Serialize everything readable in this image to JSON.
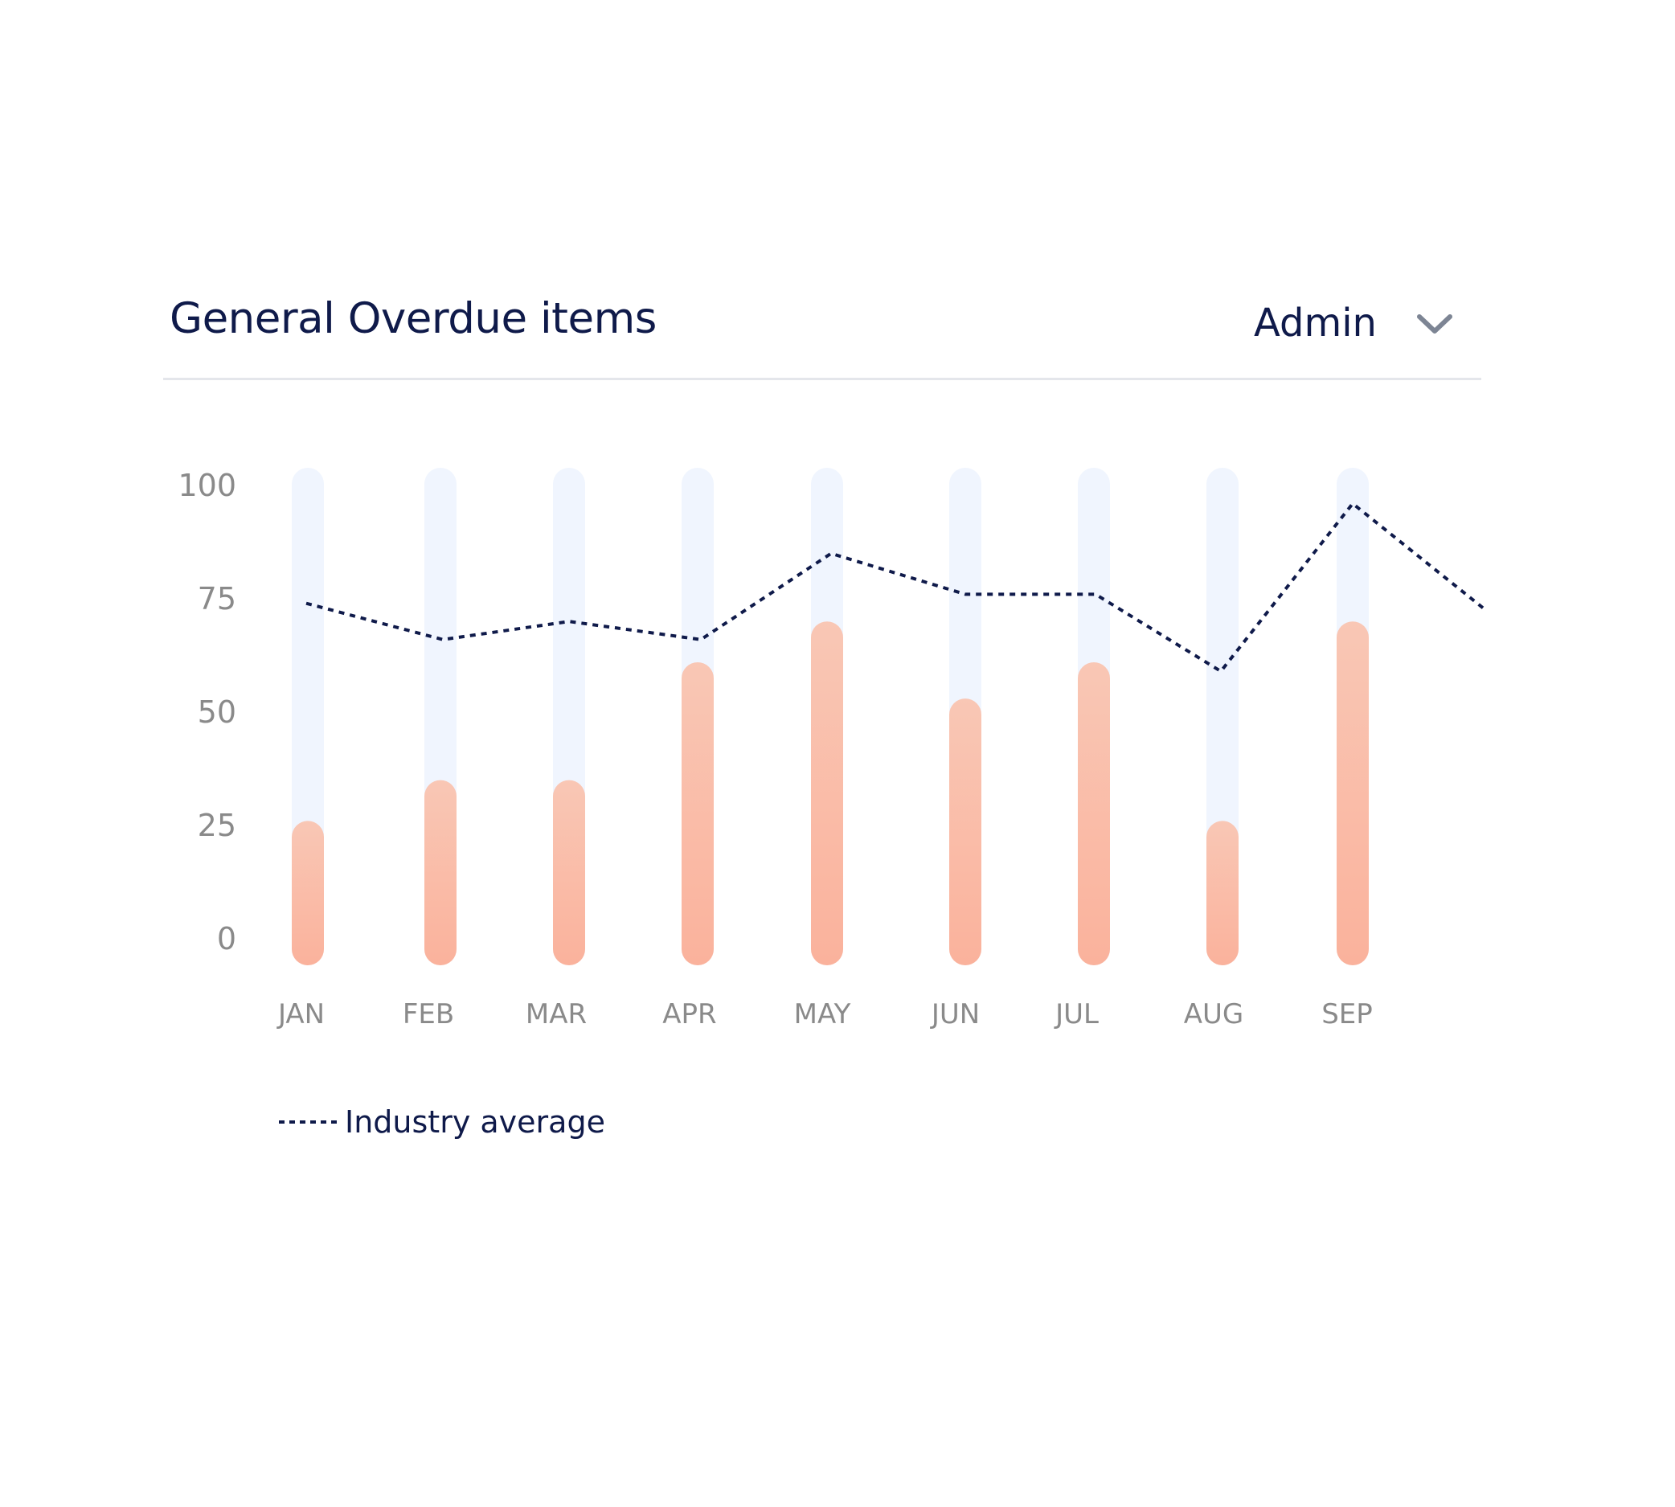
{
  "header": {
    "title": "General Overdue items",
    "filter_label": "Admin",
    "filter_icon": "chevron-down-icon"
  },
  "legend": {
    "line_label": "Industry average"
  },
  "colors": {
    "bar_track": "#f0f5fe",
    "bar_fill_top": "#f9c7b5",
    "bar_fill_bottom": "#fab29c",
    "line": "#0f1a4a",
    "title": "#0f1a4a",
    "axis_text": "#8a8a8a"
  },
  "chart_data": {
    "type": "bar",
    "categories": [
      "JAN",
      "FEB",
      "MAR",
      "APR",
      "MAY",
      "JUN",
      "JUL",
      "AUG",
      "SEP"
    ],
    "series": [
      {
        "type": "bar",
        "values": [
          26,
          35,
          35,
          61,
          70,
          53,
          61,
          26,
          70
        ]
      },
      {
        "name": "Industry average",
        "type": "line",
        "style": "dotted",
        "values": [
          74,
          66,
          70,
          66,
          85,
          76,
          76,
          59,
          96
        ],
        "trailing_value": 73
      }
    ],
    "yticks": [
      0,
      25,
      50,
      75,
      100
    ],
    "ylim": [
      0,
      100
    ],
    "grid": false,
    "legend_position": "bottom-left"
  }
}
